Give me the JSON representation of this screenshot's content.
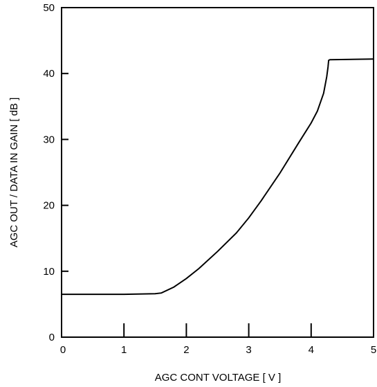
{
  "chart_data": {
    "type": "line",
    "title": "",
    "xlabel": "AGC  CONT  VOLTAGE  [ V ]",
    "ylabel": "AGC  OUT / DATA  IN  GAIN  [ dB ]",
    "xlim": [
      0,
      5
    ],
    "ylim": [
      0,
      50
    ],
    "x_ticks": [
      0,
      1,
      2,
      3,
      4,
      5
    ],
    "y_ticks": [
      0,
      10,
      20,
      30,
      40,
      50
    ],
    "x_tick_labels": [
      "0",
      "1",
      "2",
      "3",
      "4",
      "5"
    ],
    "y_tick_labels": [
      "0",
      "10",
      "20",
      "30",
      "40",
      "50"
    ],
    "grid": false,
    "line_color": "#000000",
    "series": [
      {
        "x": [
          0,
          0.5,
          1.0,
          1.5,
          1.6,
          1.8,
          2.0,
          2.2,
          2.5,
          2.8,
          3.0,
          3.2,
          3.5,
          3.8,
          4.0,
          4.1,
          4.2,
          4.25,
          4.27,
          4.28,
          4.3,
          5.0
        ],
        "y": [
          6.5,
          6.5,
          6.5,
          6.6,
          6.7,
          7.6,
          8.9,
          10.4,
          13.0,
          15.8,
          18.1,
          20.7,
          24.9,
          29.5,
          32.5,
          34.3,
          37.0,
          39.5,
          41.0,
          42.0,
          42.1,
          42.2
        ]
      }
    ]
  }
}
